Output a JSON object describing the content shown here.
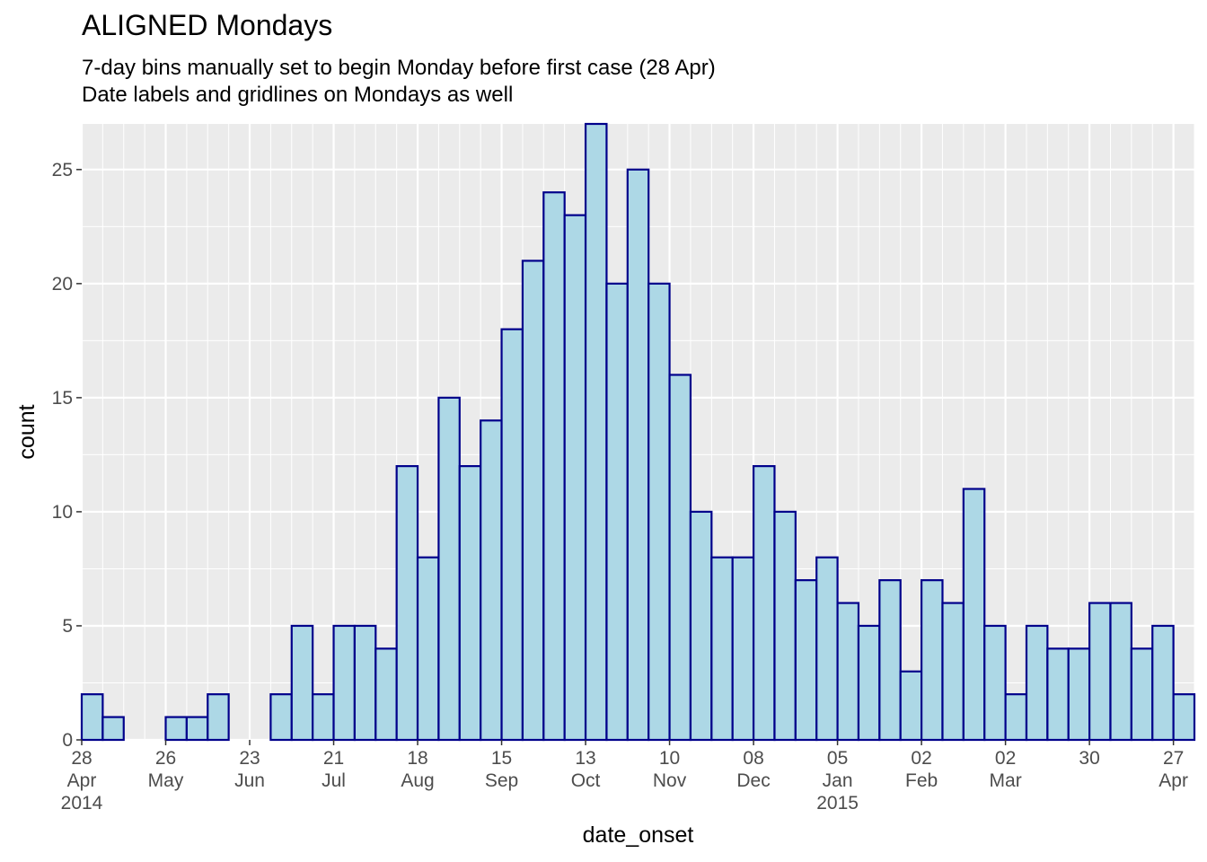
{
  "title": "ALIGNED Mondays",
  "subtitle_lines": [
    "7-day bins manually set to begin Monday before first case (28 Apr)",
    "Date labels and gridlines on Mondays as well"
  ],
  "chart_data": {
    "type": "bar",
    "title": "ALIGNED Mondays",
    "subtitle": "7-day bins manually set to begin Monday before first case (28 Apr)\nDate labels and gridlines on Mondays as well",
    "xlabel": "date_onset",
    "ylabel": "count",
    "bin_width_days": 7,
    "x_range": [
      "2014-04-28",
      "2015-05-04"
    ],
    "ylim": [
      0,
      27
    ],
    "y_ticks": [
      0,
      5,
      10,
      15,
      20,
      25
    ],
    "grid": true,
    "fill_color": "#ADD8E6",
    "border_color": "#00008B",
    "panel_color": "#EBEBEB",
    "bin_starts": [
      "2014-04-28",
      "2014-05-05",
      "2014-05-12",
      "2014-05-19",
      "2014-05-26",
      "2014-06-02",
      "2014-06-09",
      "2014-06-16",
      "2014-06-23",
      "2014-06-30",
      "2014-07-07",
      "2014-07-14",
      "2014-07-21",
      "2014-07-28",
      "2014-08-04",
      "2014-08-11",
      "2014-08-18",
      "2014-08-25",
      "2014-09-01",
      "2014-09-08",
      "2014-09-15",
      "2014-09-22",
      "2014-09-29",
      "2014-10-06",
      "2014-10-13",
      "2014-10-20",
      "2014-10-27",
      "2014-11-03",
      "2014-11-10",
      "2014-11-17",
      "2014-11-24",
      "2014-12-01",
      "2014-12-08",
      "2014-12-15",
      "2014-12-22",
      "2014-12-29",
      "2015-01-05",
      "2015-01-12",
      "2015-01-19",
      "2015-01-26",
      "2015-02-02",
      "2015-02-09",
      "2015-02-16",
      "2015-02-23",
      "2015-03-02",
      "2015-03-09",
      "2015-03-16",
      "2015-03-23",
      "2015-03-30",
      "2015-04-06",
      "2015-04-13",
      "2015-04-20",
      "2015-04-27"
    ],
    "values": [
      2,
      1,
      0,
      0,
      1,
      1,
      2,
      0,
      0,
      2,
      5,
      2,
      5,
      5,
      4,
      12,
      8,
      15,
      12,
      14,
      18,
      21,
      24,
      23,
      27,
      20,
      25,
      20,
      16,
      10,
      8,
      8,
      12,
      10,
      7,
      8,
      6,
      5,
      7,
      3,
      7,
      6,
      11,
      5,
      2,
      5,
      4,
      4,
      6,
      6,
      4,
      5,
      2
    ],
    "x_ticks": [
      {
        "date": "2014-04-28",
        "label": [
          "28",
          "Apr",
          "2014"
        ]
      },
      {
        "date": "2014-05-26",
        "label": [
          "26",
          "May"
        ]
      },
      {
        "date": "2014-06-23",
        "label": [
          "23",
          "Jun"
        ]
      },
      {
        "date": "2014-07-21",
        "label": [
          "21",
          "Jul"
        ]
      },
      {
        "date": "2014-08-18",
        "label": [
          "18",
          "Aug"
        ]
      },
      {
        "date": "2014-09-15",
        "label": [
          "15",
          "Sep"
        ]
      },
      {
        "date": "2014-10-13",
        "label": [
          "13",
          "Oct"
        ]
      },
      {
        "date": "2014-11-10",
        "label": [
          "10",
          "Nov"
        ]
      },
      {
        "date": "2014-12-08",
        "label": [
          "08",
          "Dec"
        ]
      },
      {
        "date": "2015-01-05",
        "label": [
          "05",
          "Jan",
          "2015"
        ]
      },
      {
        "date": "2015-02-02",
        "label": [
          "02",
          "Feb"
        ]
      },
      {
        "date": "2015-03-02",
        "label": [
          "02",
          "Mar"
        ]
      },
      {
        "date": "2015-03-30",
        "label": [
          "30"
        ]
      },
      {
        "date": "2015-04-27",
        "label": [
          "27",
          "Apr"
        ]
      }
    ],
    "x_minor_gridlines": "weekly (every Monday)"
  }
}
